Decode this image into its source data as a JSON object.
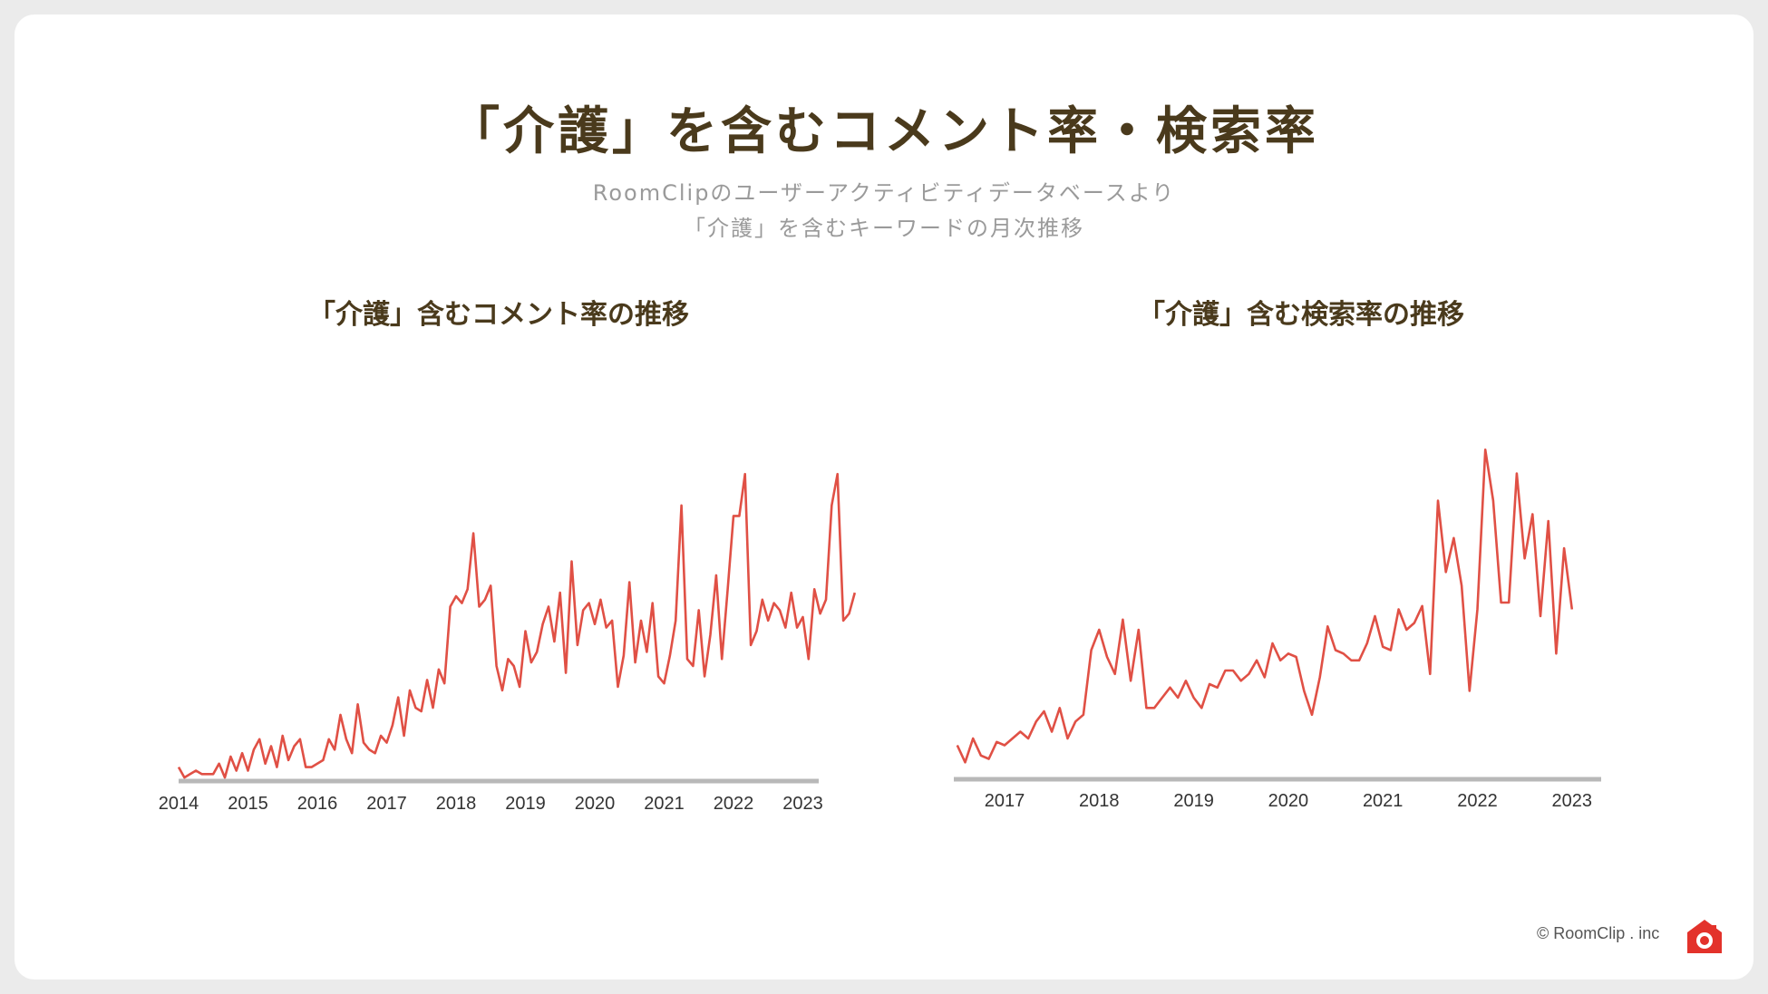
{
  "title": "「介護」を含むコメント率・検索率",
  "subtitle_lines": [
    "RoomClipのユーザーアクティビティデータベースより",
    "「介護」を含むキーワードの月次推移"
  ],
  "footer": "© RoomClip . inc",
  "colors": {
    "line": "#e05045",
    "axis": "#b8b8b8",
    "title": "#4a3a1c",
    "subtitle": "#9a9a9a"
  },
  "chart_data": [
    {
      "type": "line",
      "title": "「介護」含むコメント率の推移",
      "xlabel": "",
      "ylabel": "",
      "x_ticks": [
        "2014",
        "2015",
        "2016",
        "2017",
        "2018",
        "2019",
        "2020",
        "2021",
        "2022",
        "2023"
      ],
      "x_start": 2014.0,
      "x_step": 0.08333,
      "ylim": [
        0,
        100
      ],
      "grid": false,
      "series": [
        {
          "values": [
            4,
            1,
            2,
            3,
            2,
            2,
            2,
            5,
            1,
            7,
            3,
            8,
            3,
            9,
            12,
            5,
            10,
            4,
            13,
            6,
            10,
            12,
            4,
            4,
            5,
            6,
            12,
            9,
            19,
            12,
            8,
            22,
            11,
            9,
            8,
            13,
            11,
            16,
            24,
            13,
            26,
            21,
            20,
            29,
            21,
            32,
            28,
            50,
            53,
            51,
            55,
            71,
            50,
            52,
            56,
            33,
            26,
            35,
            33,
            27,
            43,
            34,
            37,
            45,
            50,
            40,
            54,
            31,
            63,
            39,
            49,
            51,
            45,
            52,
            44,
            46,
            27,
            36,
            57,
            34,
            46,
            37,
            51,
            30,
            28,
            36,
            46,
            79,
            35,
            33,
            49,
            30,
            42,
            59,
            35,
            55,
            76,
            76,
            88,
            39,
            43,
            52,
            46,
            51,
            49,
            44,
            54,
            44,
            47,
            35,
            55,
            48,
            52,
            79,
            88,
            46,
            48,
            54
          ]
        }
      ]
    },
    {
      "type": "line",
      "title": "「介護」含む検索率の推移",
      "xlabel": "",
      "ylabel": "",
      "x_ticks": [
        "2017",
        "2018",
        "2019",
        "2020",
        "2021",
        "2022",
        "2023"
      ],
      "x_start": 2016.5,
      "x_step": 0.08333,
      "ylim": [
        0,
        100
      ],
      "grid": false,
      "series": [
        {
          "values": [
            10,
            5,
            12,
            7,
            6,
            11,
            10,
            12,
            14,
            12,
            17,
            20,
            14,
            21,
            12,
            17,
            19,
            38,
            44,
            36,
            31,
            47,
            29,
            44,
            21,
            21,
            24,
            27,
            24,
            29,
            24,
            21,
            28,
            27,
            32,
            32,
            29,
            31,
            35,
            30,
            40,
            35,
            37,
            36,
            26,
            19,
            30,
            45,
            38,
            37,
            35,
            35,
            40,
            48,
            39,
            38,
            50,
            44,
            46,
            51,
            31,
            82,
            61,
            71,
            57,
            26,
            50,
            97,
            82,
            52,
            52,
            90,
            65,
            78,
            48,
            76,
            37,
            68,
            50
          ]
        }
      ]
    }
  ]
}
